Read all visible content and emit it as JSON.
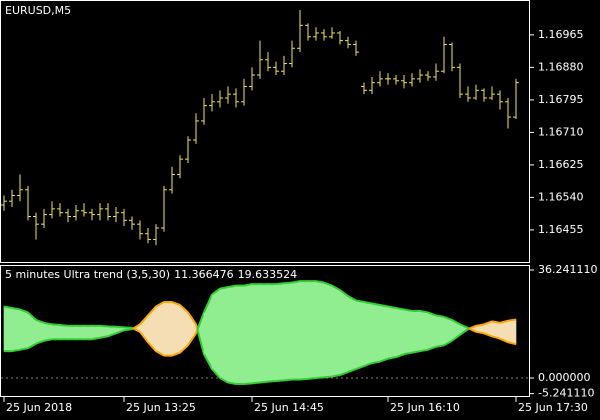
{
  "chart_data": [
    {
      "type": "ohlc",
      "title": "EURUSD,M5",
      "color": "#f2e35c",
      "categories": [
        "25 Jun 2018",
        null,
        null,
        null,
        null,
        null,
        null,
        null,
        null,
        null,
        null,
        null,
        null,
        null,
        null,
        "25 Jun 13:25",
        null,
        null,
        null,
        null,
        null,
        null,
        null,
        null,
        null,
        null,
        null,
        null,
        null,
        null,
        null,
        "25 Jun 14:45",
        null,
        null,
        null,
        null,
        null,
        null,
        null,
        null,
        null,
        null,
        null,
        null,
        null,
        null,
        null,
        null,
        "25 Jun 16:10",
        null,
        null,
        null,
        null,
        null,
        null,
        null,
        null,
        null,
        null,
        null,
        null,
        null,
        null,
        null,
        "25 Jun 17:30"
      ],
      "open": [
        1.1652,
        1.1653,
        1.16545,
        1.1656,
        1.1649,
        1.1647,
        1.16495,
        1.1651,
        1.165,
        1.1649,
        1.16505,
        1.165,
        1.16495,
        1.1651,
        1.1649,
        1.165,
        1.1648,
        1.1647,
        1.16445,
        1.1643,
        1.1646,
        1.1656,
        1.166,
        1.1664,
        1.1669,
        1.1674,
        1.1678,
        1.1679,
        1.168,
        1.1681,
        1.1679,
        1.1683,
        1.1686,
        1.169,
        1.1688,
        1.1687,
        1.1689,
        1.1693,
        1.1699,
        1.1696,
        1.1697,
        1.1696,
        1.1697,
        1.1695,
        1.1694,
        1.1683,
        1.1682,
        1.1684,
        1.1685,
        1.1685,
        1.16845,
        1.1684,
        1.1685,
        1.1686,
        1.16855,
        1.1687,
        1.1694,
        1.1688,
        1.1681,
        1.168,
        1.1682,
        1.168,
        1.1681,
        1.1679,
        1.1675
      ],
      "high": [
        1.16545,
        1.1656,
        1.166,
        1.1657,
        1.165,
        1.1651,
        1.1653,
        1.16525,
        1.1651,
        1.1652,
        1.16525,
        1.1651,
        1.16525,
        1.16525,
        1.16515,
        1.1651,
        1.1649,
        1.1648,
        1.1646,
        1.1647,
        1.1657,
        1.1662,
        1.1665,
        1.167,
        1.1676,
        1.168,
        1.1681,
        1.1682,
        1.1683,
        1.16825,
        1.1685,
        1.1688,
        1.1695,
        1.1692,
        1.16895,
        1.1691,
        1.1695,
        1.1703,
        1.16995,
        1.16985,
        1.1698,
        1.16985,
        1.16975,
        1.1696,
        1.1695,
        1.1684,
        1.16855,
        1.1687,
        1.16865,
        1.1686,
        1.1686,
        1.16865,
        1.16875,
        1.1687,
        1.1689,
        1.1696,
        1.16945,
        1.1689,
        1.1683,
        1.16835,
        1.16825,
        1.1683,
        1.1682,
        1.168,
        1.1685
      ],
      "low": [
        1.16505,
        1.16515,
        1.1653,
        1.1648,
        1.1643,
        1.1646,
        1.16485,
        1.1649,
        1.16475,
        1.1648,
        1.1649,
        1.1648,
        1.1648,
        1.1648,
        1.16475,
        1.16465,
        1.16455,
        1.1643,
        1.1642,
        1.16415,
        1.1645,
        1.1655,
        1.1659,
        1.1663,
        1.1668,
        1.1673,
        1.16765,
        1.16775,
        1.16785,
        1.16775,
        1.1678,
        1.1682,
        1.1685,
        1.1687,
        1.1686,
        1.1686,
        1.1688,
        1.1692,
        1.1695,
        1.1695,
        1.1695,
        1.16955,
        1.1694,
        1.1693,
        1.1691,
        1.1681,
        1.1681,
        1.1683,
        1.16835,
        1.16835,
        1.16825,
        1.1683,
        1.1684,
        1.16845,
        1.16845,
        1.16865,
        1.1687,
        1.168,
        1.1679,
        1.16795,
        1.1679,
        1.16795,
        1.1677,
        1.1672,
        1.16745
      ],
      "close": [
        1.1653,
        1.16545,
        1.1656,
        1.1649,
        1.1647,
        1.16495,
        1.1651,
        1.165,
        1.1649,
        1.16505,
        1.165,
        1.16495,
        1.1651,
        1.1649,
        1.165,
        1.1648,
        1.1647,
        1.16445,
        1.1643,
        1.1646,
        1.1656,
        1.166,
        1.1664,
        1.1669,
        1.1674,
        1.1678,
        1.1679,
        1.168,
        1.1681,
        1.1679,
        1.1683,
        1.1686,
        1.169,
        1.1688,
        1.1687,
        1.1689,
        1.1693,
        1.1699,
        1.1696,
        1.1697,
        1.1696,
        1.1697,
        1.1695,
        1.1694,
        1.1692,
        1.1682,
        1.1684,
        1.1685,
        1.1685,
        1.16845,
        1.1684,
        1.1685,
        1.1686,
        1.16855,
        1.1687,
        1.1694,
        1.1688,
        1.1681,
        1.168,
        1.1682,
        1.168,
        1.1681,
        1.1679,
        1.1675,
        1.1684
      ],
      "ylim": [
        1.16371,
        1.17051
      ],
      "yticks": [
        1.16455,
        {
          "value": 1.1654,
          "label": "1.16540"
        },
        1.16625,
        {
          "value": 1.1671,
          "label": "1.16710"
        },
        1.16795,
        {
          "value": 1.1688,
          "label": "1.16880"
        },
        1.16965
      ]
    },
    {
      "type": "band",
      "title": "5 minutes Ultra trend (3,5,30)",
      "series": [
        {
          "color": "#32cd32",
          "values": [
            24,
            23.5,
            23,
            22,
            19.5,
            18.5,
            18,
            17.8,
            17.5,
            17.5,
            17.5,
            17.5,
            17.5,
            17.3,
            17.2,
            17,
            16.8,
            15.5,
            12,
            9,
            7.5,
            7.5,
            8.5,
            11,
            15,
            22,
            28,
            30,
            30.5,
            31,
            31,
            31.5,
            31.5,
            31.5,
            31.5,
            31.8,
            32,
            32.5,
            32.5,
            32.5,
            32,
            31,
            29.5,
            27.5,
            26,
            25.5,
            25,
            24.5,
            24,
            23.5,
            23,
            22.5,
            22.5,
            22,
            21,
            20.5,
            19.5,
            18,
            16.8,
            15.5,
            15,
            14,
            13.2,
            12,
            11.366476
          ]
        },
        {
          "color": "#ffa500",
          "values": [
            9,
            9,
            9.5,
            10,
            11.5,
            12.5,
            13,
            13,
            13,
            13,
            13,
            13,
            13.5,
            14,
            15,
            16,
            16.4,
            18,
            21,
            24,
            25.5,
            25.5,
            24.5,
            22,
            18,
            8,
            3,
            0,
            -1.5,
            -2,
            -2,
            -1.8,
            -1.5,
            -1.2,
            -1,
            -0.8,
            -0.5,
            -0.5,
            -0.3,
            0,
            0.2,
            0.5,
            1,
            2,
            3,
            4,
            5,
            5.5,
            6.5,
            7,
            8,
            8.5,
            9,
            9.5,
            10.5,
            11,
            12.5,
            14.5,
            16.4,
            17.5,
            18,
            19,
            18.5,
            19.2,
            19.633524
          ]
        }
      ],
      "fill_colors": [
        "#90ee90",
        "#f5deb3"
      ],
      "ylim": [
        -6.04,
        37.58
      ],
      "yticks": [
        {
          "value": 36.24111,
          "label": "36.241110"
        },
        {
          "value": 0,
          "label": "0.000000"
        },
        {
          "value": -5.24111,
          "label": "-5.241110"
        }
      ]
    }
  ]
}
